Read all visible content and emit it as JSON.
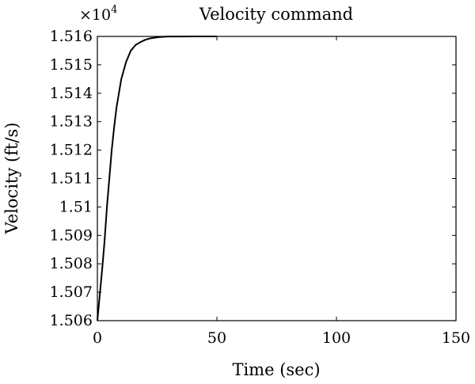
{
  "chart_data": {
    "type": "line",
    "title": "Velocity command",
    "xlabel": "Time (sec)",
    "ylabel": "Velocity (ft/s)",
    "y_multiplier_label": "×10",
    "y_multiplier_exponent": "4",
    "xlim": [
      0,
      150
    ],
    "ylim": [
      1.506,
      1.516
    ],
    "x_ticks": [
      0,
      50,
      100,
      150
    ],
    "x_tick_labels": [
      "0",
      "50",
      "100",
      "150"
    ],
    "y_ticks": [
      1.506,
      1.507,
      1.508,
      1.509,
      1.51,
      1.511,
      1.512,
      1.513,
      1.514,
      1.515,
      1.516
    ],
    "y_tick_labels": [
      "1.506",
      "1.507",
      "1.508",
      "1.509",
      "1.51",
      "1.511",
      "1.512",
      "1.513",
      "1.514",
      "1.515",
      "1.516"
    ],
    "grid": false,
    "series": [
      {
        "color": "#000000",
        "x": [
          0,
          1,
          2,
          3,
          4,
          5,
          6,
          7,
          8,
          9,
          10,
          12,
          14,
          16,
          18,
          20,
          22,
          25,
          28,
          30,
          35,
          40,
          45,
          50
        ],
        "y": [
          1.506,
          1.5069,
          1.5078,
          1.5088,
          1.51,
          1.511,
          1.512,
          1.5128,
          1.5135,
          1.514,
          1.5145,
          1.5151,
          1.5155,
          1.5157,
          1.5158,
          1.51588,
          1.51593,
          1.51597,
          1.51599,
          1.515995,
          1.515998,
          1.516,
          1.516,
          1.516
        ]
      }
    ]
  }
}
